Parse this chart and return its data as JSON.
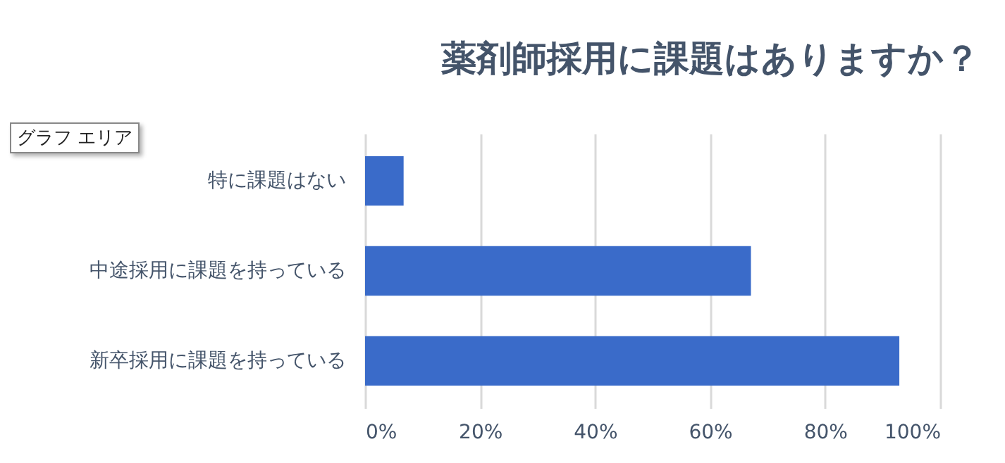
{
  "chart_data": {
    "type": "bar",
    "orientation": "horizontal",
    "title": "薬剤師採用に課題はありますか？",
    "categories": [
      "特に課題はない",
      "中途採用に課題を持っている",
      "新卒採用に課題を持っている"
    ],
    "values": [
      6.7,
      67.1,
      92.9
    ],
    "color": "#3a6bc9",
    "xlim": [
      0,
      100
    ],
    "xticks": [
      {
        "value": 0,
        "label": "0%"
      },
      {
        "value": 20,
        "label": "20%"
      },
      {
        "value": 40,
        "label": "40%"
      },
      {
        "value": 60,
        "label": "60%"
      },
      {
        "value": 80,
        "label": "80%"
      },
      {
        "value": 100,
        "label": "100%"
      }
    ],
    "grid": "x",
    "annotations": [
      "グラフ エリア"
    ]
  }
}
